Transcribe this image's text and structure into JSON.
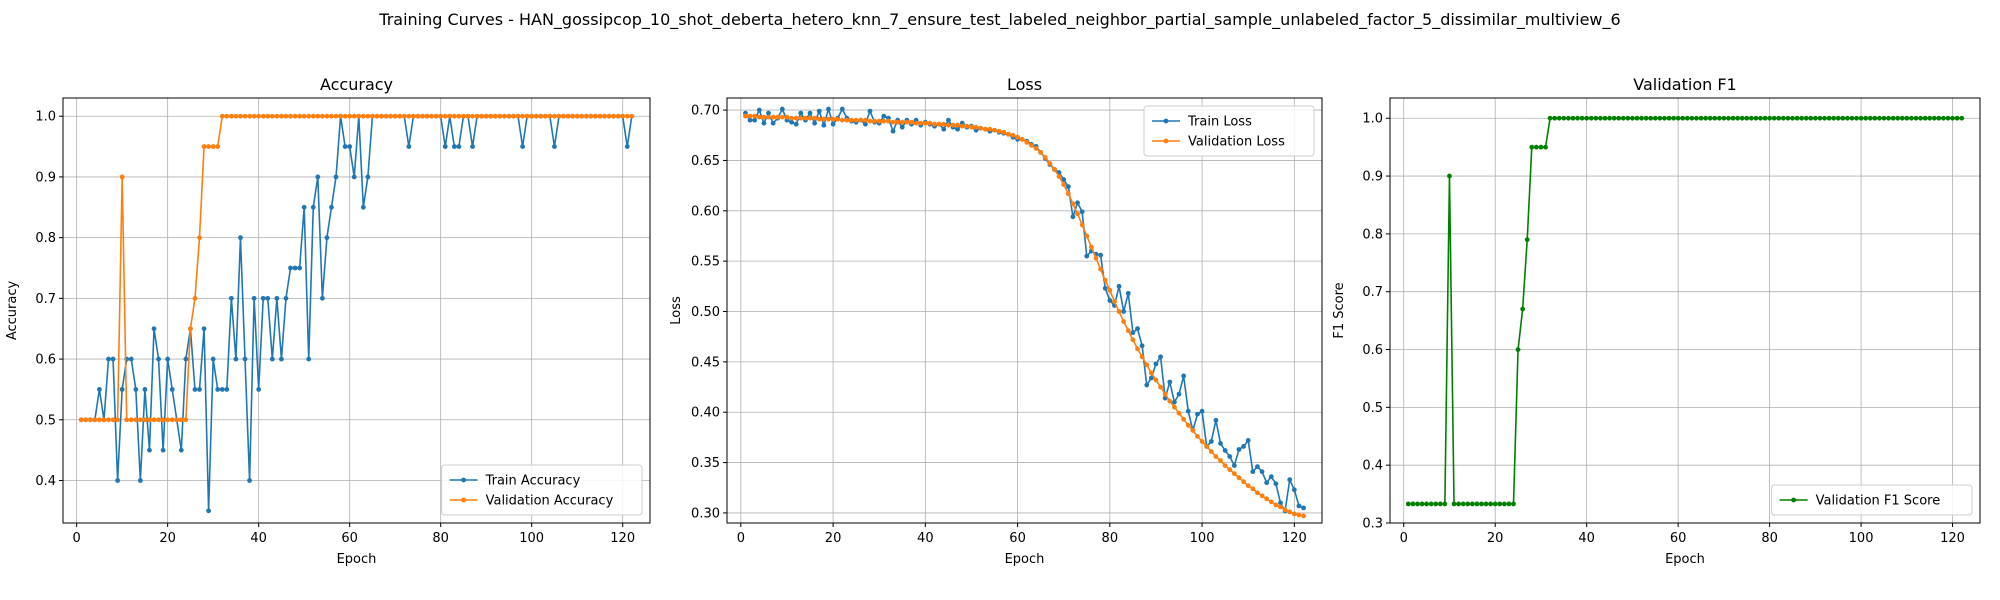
{
  "figure": {
    "suptitle": "Training Curves - HAN_gossipcop_10_shot_deberta_hetero_knn_7_ensure_test_labeled_neighbor_partial_sample_unlabeled_factor_5_dissimilar_multiview_6"
  },
  "colors": {
    "train": "#1f77b4",
    "validation": "#ff7f0e",
    "f1": "#008000",
    "grid": "#b0b0b0"
  },
  "chart_data": [
    {
      "type": "line",
      "title": "Accuracy",
      "xlabel": "Epoch",
      "ylabel": "Accuracy",
      "xlim": [
        -3,
        126
      ],
      "ylim": [
        0.33,
        1.03
      ],
      "xticks": [
        0,
        20,
        40,
        60,
        80,
        100,
        120
      ],
      "yticks": [
        0.4,
        0.5,
        0.6,
        0.7,
        0.8,
        0.9,
        1.0
      ],
      "ytick_format": 1,
      "grid": true,
      "legend": "lower-right",
      "x": [
        1,
        2,
        3,
        4,
        5,
        6,
        7,
        8,
        9,
        10,
        11,
        12,
        13,
        14,
        15,
        16,
        17,
        18,
        19,
        20,
        21,
        22,
        23,
        24,
        25,
        26,
        27,
        28,
        29,
        30,
        31,
        32,
        33,
        34,
        35,
        36,
        37,
        38,
        39,
        40,
        41,
        42,
        43,
        44,
        45,
        46,
        47,
        48,
        49,
        50,
        51,
        52,
        53,
        54,
        55,
        56,
        57,
        58,
        59,
        60,
        61,
        62,
        63,
        64,
        65,
        66,
        67,
        68,
        69,
        70,
        71,
        72,
        73,
        74,
        75,
        76,
        77,
        78,
        79,
        80,
        81,
        82,
        83,
        84,
        85,
        86,
        87,
        88,
        89,
        90,
        91,
        92,
        93,
        94,
        95,
        96,
        97,
        98,
        99,
        100,
        101,
        102,
        103,
        104,
        105,
        106,
        107,
        108,
        109,
        110,
        111,
        112,
        113,
        114,
        115,
        116,
        117,
        118,
        119,
        120,
        121,
        122
      ],
      "series": [
        {
          "name": "Train Accuracy",
          "color": "#1f77b4",
          "values": [
            0.5,
            0.5,
            0.5,
            0.5,
            0.55,
            0.5,
            0.6,
            0.6,
            0.4,
            0.55,
            0.6,
            0.6,
            0.55,
            0.4,
            0.55,
            0.45,
            0.65,
            0.6,
            0.45,
            0.6,
            0.55,
            0.5,
            0.45,
            0.6,
            0.65,
            0.55,
            0.55,
            0.65,
            0.35,
            0.6,
            0.55,
            0.55,
            0.55,
            0.7,
            0.6,
            0.8,
            0.6,
            0.4,
            0.7,
            0.55,
            0.7,
            0.7,
            0.6,
            0.7,
            0.6,
            0.7,
            0.75,
            0.75,
            0.75,
            0.85,
            0.6,
            0.85,
            0.9,
            0.7,
            0.8,
            0.85,
            0.9,
            1.0,
            0.95,
            0.95,
            0.9,
            1.0,
            0.85,
            0.9,
            1.0,
            1.0,
            1.0,
            1.0,
            1.0,
            1.0,
            1.0,
            1.0,
            0.95,
            1.0,
            1.0,
            1.0,
            1.0,
            1.0,
            1.0,
            1.0,
            0.95,
            1.0,
            0.95,
            0.95,
            1.0,
            1.0,
            0.95,
            1.0,
            1.0,
            1.0,
            1.0,
            1.0,
            1.0,
            1.0,
            1.0,
            1.0,
            1.0,
            0.95,
            1.0,
            1.0,
            1.0,
            1.0,
            1.0,
            1.0,
            0.95,
            1.0,
            1.0,
            1.0,
            1.0,
            1.0,
            1.0,
            1.0,
            1.0,
            1.0,
            1.0,
            1.0,
            1.0,
            1.0,
            1.0,
            1.0,
            0.95,
            1.0
          ]
        },
        {
          "name": "Validation Accuracy",
          "color": "#ff7f0e",
          "values": [
            0.5,
            0.5,
            0.5,
            0.5,
            0.5,
            0.5,
            0.5,
            0.5,
            0.5,
            0.9,
            0.5,
            0.5,
            0.5,
            0.5,
            0.5,
            0.5,
            0.5,
            0.5,
            0.5,
            0.5,
            0.5,
            0.5,
            0.5,
            0.5,
            0.65,
            0.7,
            0.8,
            0.95,
            0.95,
            0.95,
            0.95,
            1.0,
            1.0,
            1.0,
            1.0,
            1.0,
            1.0,
            1.0,
            1.0,
            1.0,
            1.0,
            1.0,
            1.0,
            1.0,
            1.0,
            1.0,
            1.0,
            1.0,
            1.0,
            1.0,
            1.0,
            1.0,
            1.0,
            1.0,
            1.0,
            1.0,
            1.0,
            1.0,
            1.0,
            1.0,
            1.0,
            1.0,
            1.0,
            1.0,
            1.0,
            1.0,
            1.0,
            1.0,
            1.0,
            1.0,
            1.0,
            1.0,
            1.0,
            1.0,
            1.0,
            1.0,
            1.0,
            1.0,
            1.0,
            1.0,
            1.0,
            1.0,
            1.0,
            1.0,
            1.0,
            1.0,
            1.0,
            1.0,
            1.0,
            1.0,
            1.0,
            1.0,
            1.0,
            1.0,
            1.0,
            1.0,
            1.0,
            1.0,
            1.0,
            1.0,
            1.0,
            1.0,
            1.0,
            1.0,
            1.0,
            1.0,
            1.0,
            1.0,
            1.0,
            1.0,
            1.0,
            1.0,
            1.0,
            1.0,
            1.0,
            1.0,
            1.0,
            1.0,
            1.0,
            1.0,
            1.0,
            1.0
          ]
        }
      ]
    },
    {
      "type": "line",
      "title": "Loss",
      "xlabel": "Epoch",
      "ylabel": "Loss",
      "xlim": [
        -3,
        126
      ],
      "ylim": [
        0.29,
        0.712
      ],
      "xticks": [
        0,
        20,
        40,
        60,
        80,
        100,
        120
      ],
      "yticks": [
        0.3,
        0.35,
        0.4,
        0.45,
        0.5,
        0.55,
        0.6,
        0.65,
        0.7
      ],
      "ytick_format": 2,
      "grid": true,
      "legend": "top-right",
      "x": [
        1,
        2,
        3,
        4,
        5,
        6,
        7,
        8,
        9,
        10,
        11,
        12,
        13,
        14,
        15,
        16,
        17,
        18,
        19,
        20,
        21,
        22,
        23,
        24,
        25,
        26,
        27,
        28,
        29,
        30,
        31,
        32,
        33,
        34,
        35,
        36,
        37,
        38,
        39,
        40,
        41,
        42,
        43,
        44,
        45,
        46,
        47,
        48,
        49,
        50,
        51,
        52,
        53,
        54,
        55,
        56,
        57,
        58,
        59,
        60,
        61,
        62,
        63,
        64,
        65,
        66,
        67,
        68,
        69,
        70,
        71,
        72,
        73,
        74,
        75,
        76,
        77,
        78,
        79,
        80,
        81,
        82,
        83,
        84,
        85,
        86,
        87,
        88,
        89,
        90,
        91,
        92,
        93,
        94,
        95,
        96,
        97,
        98,
        99,
        100,
        101,
        102,
        103,
        104,
        105,
        106,
        107,
        108,
        109,
        110,
        111,
        112,
        113,
        114,
        115,
        116,
        117,
        118,
        119,
        120,
        121,
        122
      ],
      "series": [
        {
          "name": "Train Loss",
          "color": "#1f77b4",
          "values": [
            0.697,
            0.69,
            0.69,
            0.7,
            0.687,
            0.697,
            0.687,
            0.692,
            0.701,
            0.69,
            0.688,
            0.686,
            0.697,
            0.69,
            0.697,
            0.687,
            0.699,
            0.685,
            0.701,
            0.686,
            0.692,
            0.701,
            0.692,
            0.689,
            0.688,
            0.69,
            0.686,
            0.699,
            0.688,
            0.687,
            0.694,
            0.692,
            0.679,
            0.69,
            0.683,
            0.69,
            0.686,
            0.69,
            0.685,
            0.688,
            0.686,
            0.684,
            0.686,
            0.681,
            0.69,
            0.683,
            0.681,
            0.687,
            0.683,
            0.684,
            0.68,
            0.682,
            0.681,
            0.679,
            0.68,
            0.678,
            0.677,
            0.676,
            0.673,
            0.671,
            0.671,
            0.669,
            0.666,
            0.664,
            0.658,
            0.652,
            0.646,
            0.641,
            0.638,
            0.631,
            0.624,
            0.594,
            0.608,
            0.599,
            0.555,
            0.56,
            0.557,
            0.556,
            0.523,
            0.511,
            0.506,
            0.525,
            0.5,
            0.518,
            0.479,
            0.483,
            0.466,
            0.427,
            0.434,
            0.448,
            0.455,
            0.414,
            0.43,
            0.41,
            0.418,
            0.436,
            0.401,
            0.382,
            0.398,
            0.401,
            0.366,
            0.371,
            0.392,
            0.369,
            0.362,
            0.356,
            0.347,
            0.363,
            0.366,
            0.372,
            0.341,
            0.346,
            0.341,
            0.33,
            0.336,
            0.329,
            0.31,
            0.302,
            0.333,
            0.323,
            0.307,
            0.305
          ]
        },
        {
          "name": "Validation Loss",
          "color": "#ff7f0e",
          "values": [
            0.694,
            0.694,
            0.694,
            0.693,
            0.693,
            0.693,
            0.693,
            0.693,
            0.693,
            0.693,
            0.692,
            0.692,
            0.692,
            0.692,
            0.692,
            0.692,
            0.691,
            0.691,
            0.691,
            0.691,
            0.691,
            0.69,
            0.69,
            0.69,
            0.69,
            0.69,
            0.69,
            0.689,
            0.689,
            0.689,
            0.689,
            0.689,
            0.688,
            0.688,
            0.688,
            0.688,
            0.688,
            0.687,
            0.687,
            0.687,
            0.687,
            0.686,
            0.686,
            0.686,
            0.685,
            0.685,
            0.685,
            0.684,
            0.684,
            0.683,
            0.683,
            0.682,
            0.681,
            0.681,
            0.68,
            0.679,
            0.678,
            0.676,
            0.675,
            0.673,
            0.671,
            0.668,
            0.665,
            0.662,
            0.658,
            0.653,
            0.647,
            0.641,
            0.634,
            0.626,
            0.617,
            0.607,
            0.597,
            0.586,
            0.575,
            0.564,
            0.553,
            0.542,
            0.531,
            0.521,
            0.51,
            0.5,
            0.49,
            0.481,
            0.472,
            0.463,
            0.455,
            0.447,
            0.439,
            0.432,
            0.425,
            0.418,
            0.411,
            0.405,
            0.399,
            0.393,
            0.387,
            0.382,
            0.376,
            0.371,
            0.366,
            0.361,
            0.356,
            0.352,
            0.347,
            0.343,
            0.339,
            0.335,
            0.331,
            0.327,
            0.324,
            0.32,
            0.317,
            0.314,
            0.311,
            0.308,
            0.306,
            0.303,
            0.301,
            0.299,
            0.298,
            0.297
          ]
        }
      ]
    },
    {
      "type": "line",
      "title": "Validation F1",
      "xlabel": "Epoch",
      "ylabel": "F1 Score",
      "xlim": [
        -3,
        126
      ],
      "ylim": [
        0.3,
        1.035
      ],
      "xticks": [
        0,
        20,
        40,
        60,
        80,
        100,
        120
      ],
      "yticks": [
        0.3,
        0.4,
        0.5,
        0.6,
        0.7,
        0.8,
        0.9,
        1.0
      ],
      "ytick_format": 1,
      "grid": true,
      "legend": "lower-right",
      "x": [
        1,
        2,
        3,
        4,
        5,
        6,
        7,
        8,
        9,
        10,
        11,
        12,
        13,
        14,
        15,
        16,
        17,
        18,
        19,
        20,
        21,
        22,
        23,
        24,
        25,
        26,
        27,
        28,
        29,
        30,
        31,
        32,
        33,
        34,
        35,
        36,
        37,
        38,
        39,
        40,
        41,
        42,
        43,
        44,
        45,
        46,
        47,
        48,
        49,
        50,
        51,
        52,
        53,
        54,
        55,
        56,
        57,
        58,
        59,
        60,
        61,
        62,
        63,
        64,
        65,
        66,
        67,
        68,
        69,
        70,
        71,
        72,
        73,
        74,
        75,
        76,
        77,
        78,
        79,
        80,
        81,
        82,
        83,
        84,
        85,
        86,
        87,
        88,
        89,
        90,
        91,
        92,
        93,
        94,
        95,
        96,
        97,
        98,
        99,
        100,
        101,
        102,
        103,
        104,
        105,
        106,
        107,
        108,
        109,
        110,
        111,
        112,
        113,
        114,
        115,
        116,
        117,
        118,
        119,
        120,
        121,
        122
      ],
      "series": [
        {
          "name": "Validation F1 Score",
          "color": "#008000",
          "values": [
            0.333,
            0.333,
            0.333,
            0.333,
            0.333,
            0.333,
            0.333,
            0.333,
            0.333,
            0.9,
            0.333,
            0.333,
            0.333,
            0.333,
            0.333,
            0.333,
            0.333,
            0.333,
            0.333,
            0.333,
            0.333,
            0.333,
            0.333,
            0.333,
            0.6,
            0.67,
            0.79,
            0.95,
            0.95,
            0.95,
            0.95,
            1.0,
            1.0,
            1.0,
            1.0,
            1.0,
            1.0,
            1.0,
            1.0,
            1.0,
            1.0,
            1.0,
            1.0,
            1.0,
            1.0,
            1.0,
            1.0,
            1.0,
            1.0,
            1.0,
            1.0,
            1.0,
            1.0,
            1.0,
            1.0,
            1.0,
            1.0,
            1.0,
            1.0,
            1.0,
            1.0,
            1.0,
            1.0,
            1.0,
            1.0,
            1.0,
            1.0,
            1.0,
            1.0,
            1.0,
            1.0,
            1.0,
            1.0,
            1.0,
            1.0,
            1.0,
            1.0,
            1.0,
            1.0,
            1.0,
            1.0,
            1.0,
            1.0,
            1.0,
            1.0,
            1.0,
            1.0,
            1.0,
            1.0,
            1.0,
            1.0,
            1.0,
            1.0,
            1.0,
            1.0,
            1.0,
            1.0,
            1.0,
            1.0,
            1.0,
            1.0,
            1.0,
            1.0,
            1.0,
            1.0,
            1.0,
            1.0,
            1.0,
            1.0,
            1.0,
            1.0,
            1.0,
            1.0,
            1.0,
            1.0,
            1.0,
            1.0,
            1.0,
            1.0,
            1.0,
            1.0,
            1.0
          ]
        }
      ]
    }
  ]
}
